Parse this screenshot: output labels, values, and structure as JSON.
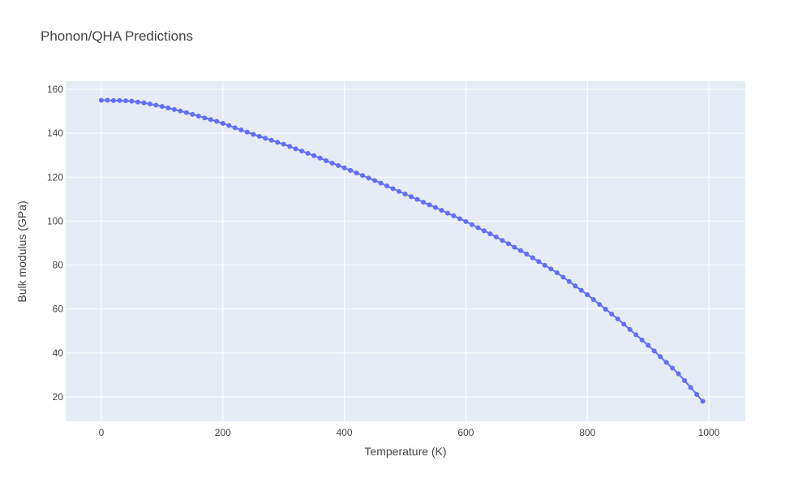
{
  "chart_data": {
    "type": "line",
    "title": "Phonon/QHA Predictions",
    "x_label": "Temperature (K)",
    "y_label": "Bulk modulus (GPa)",
    "x": [
      0,
      10,
      20,
      30,
      40,
      50,
      60,
      70,
      80,
      90,
      100,
      110,
      120,
      130,
      140,
      150,
      160,
      170,
      180,
      190,
      200,
      210,
      220,
      230,
      240,
      250,
      260,
      270,
      280,
      290,
      300,
      310,
      320,
      330,
      340,
      350,
      360,
      370,
      380,
      390,
      400,
      410,
      420,
      430,
      440,
      450,
      460,
      470,
      480,
      490,
      500,
      510,
      520,
      530,
      540,
      550,
      560,
      570,
      580,
      590,
      600,
      610,
      620,
      630,
      640,
      650,
      660,
      670,
      680,
      690,
      700,
      710,
      720,
      730,
      740,
      750,
      760,
      770,
      780,
      790,
      800,
      810,
      820,
      830,
      840,
      850,
      860,
      870,
      880,
      890,
      900,
      910,
      920,
      930,
      940,
      950,
      960,
      970,
      980,
      990
    ],
    "series": [
      {
        "name": "Bulk modulus",
        "color": "#636efa",
        "values": [
          155.0,
          155.0,
          154.9,
          154.9,
          154.8,
          154.6,
          154.2,
          153.8,
          153.3,
          152.8,
          152.2,
          151.5,
          150.8,
          150.1,
          149.4,
          148.6,
          147.8,
          147.0,
          146.2,
          145.4,
          144.5,
          143.5,
          142.5,
          141.5,
          140.5,
          139.5,
          138.6,
          137.7,
          136.8,
          135.9,
          135.0,
          134.0,
          132.9,
          131.9,
          130.8,
          129.8,
          128.7,
          127.5,
          126.4,
          125.3,
          124.2,
          123.1,
          121.9,
          120.8,
          119.6,
          118.5,
          117.3,
          116.0,
          114.8,
          113.5,
          112.3,
          111.1,
          109.9,
          108.6,
          107.4,
          106.2,
          104.9,
          103.6,
          102.4,
          101.1,
          99.8,
          98.4,
          97.0,
          95.6,
          94.2,
          92.8,
          91.2,
          89.7,
          88.1,
          86.6,
          85.0,
          83.3,
          81.6,
          79.9,
          78.2,
          76.5,
          74.5,
          72.5,
          70.5,
          68.5,
          66.5,
          64.3,
          62.1,
          59.9,
          57.7,
          55.5,
          53.1,
          50.7,
          48.3,
          45.9,
          43.5,
          40.9,
          38.3,
          35.7,
          33.1,
          30.5,
          27.4,
          24.3,
          21.1,
          18.0
        ]
      }
    ],
    "xlim": [
      -58.7,
      1060
    ],
    "xticks": [
      0,
      200,
      400,
      600,
      800,
      1000
    ],
    "ylim": [
      8.9,
      163.7
    ],
    "yticks": [
      20,
      40,
      60,
      80,
      100,
      120,
      140,
      160
    ],
    "grid": true
  }
}
